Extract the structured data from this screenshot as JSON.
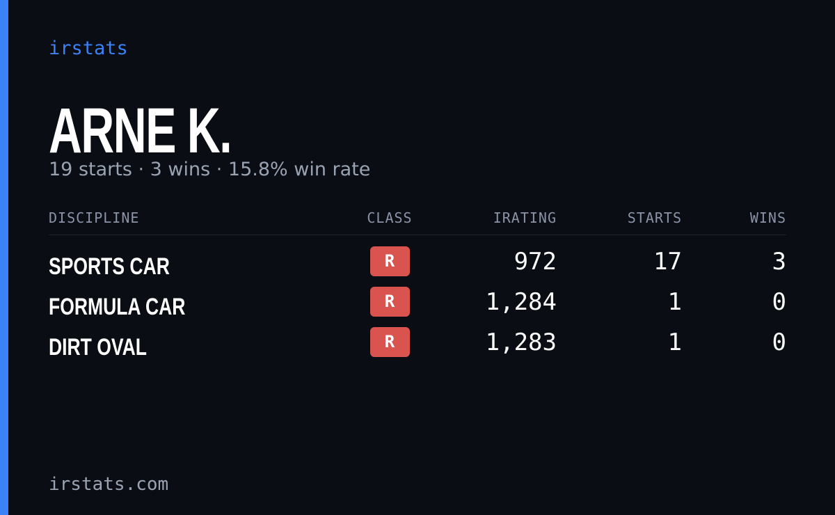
{
  "header": {
    "brand": "irstats",
    "name": "ARNE K.",
    "summary": "19 starts · 3 wins · 15.8% win rate"
  },
  "table": {
    "columns": [
      "DISCIPLINE",
      "CLASS",
      "IRATING",
      "STARTS",
      "WINS"
    ],
    "rows": [
      [
        "SPORTS CAR",
        "R",
        "972",
        "17",
        "3"
      ],
      [
        "FORMULA CAR",
        "R",
        "1,284",
        "1",
        "0"
      ],
      [
        "DIRT OVAL",
        "R",
        "1,283",
        "1",
        "0"
      ]
    ]
  },
  "footer": {
    "site": "irstats.com"
  }
}
